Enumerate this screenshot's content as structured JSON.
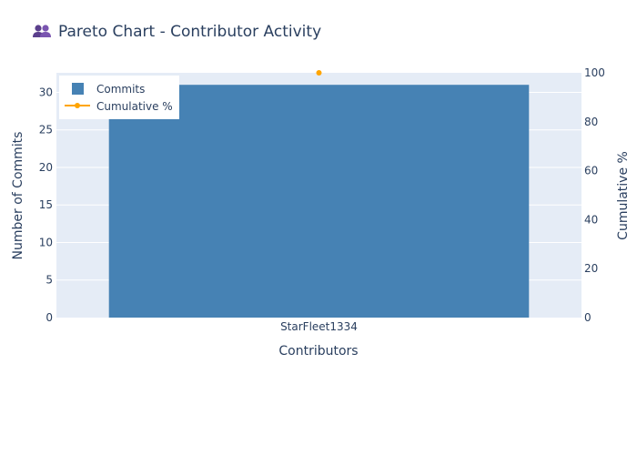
{
  "chart_data": {
    "type": "bar",
    "title": "Pareto Chart - Contributor Activity",
    "title_icon": "people-icon",
    "xlabel": "Contributors",
    "ylabel": "Number of Commits",
    "y2label": "Cumulative %",
    "categories": [
      "StarFleet1334"
    ],
    "series": [
      {
        "name": "Commits",
        "type": "bar",
        "axis": "y",
        "color": "#4682b4",
        "values": [
          31
        ]
      },
      {
        "name": "Cumulative %",
        "type": "line",
        "axis": "y2",
        "color": "#ffa500",
        "values": [
          100
        ]
      }
    ],
    "ylim": [
      0,
      32.6
    ],
    "y_ticks": [
      0,
      5,
      10,
      15,
      20,
      25,
      30
    ],
    "y2lim": [
      0,
      100
    ],
    "y2_ticks": [
      0,
      20,
      40,
      60,
      80,
      100
    ],
    "grid": true,
    "legend_position": "top-left",
    "plot_background": "#e5ecf6"
  }
}
